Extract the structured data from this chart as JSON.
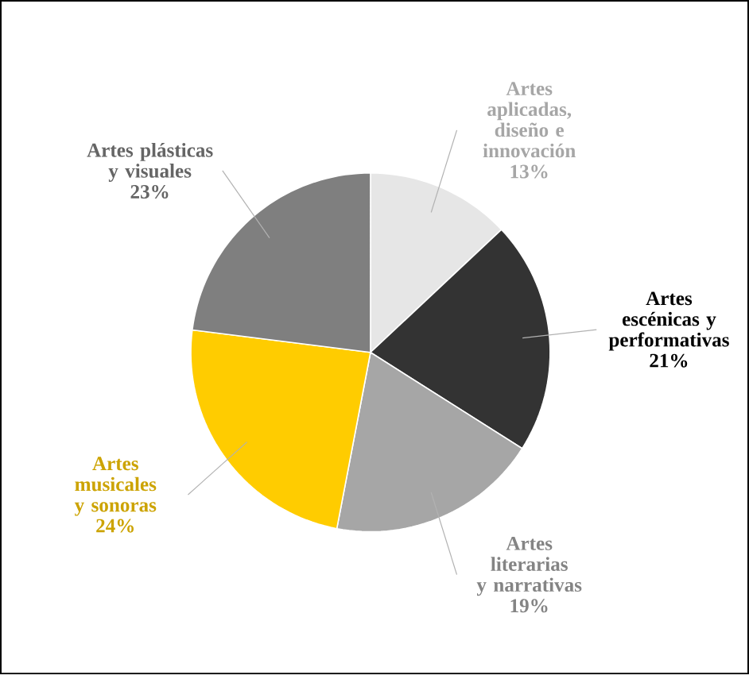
{
  "chart_data": {
    "type": "pie",
    "categories": [
      "Artes aplicadas, diseño e innovación",
      "Artes escénicas y performativas",
      "Artes literarias y narrativas",
      "Artes musicales y sonoras",
      "Artes plásticas y visuales"
    ],
    "values": [
      13,
      21,
      19,
      24,
      23
    ],
    "value_labels": [
      "13%",
      "21%",
      "19%",
      "24%",
      "23%"
    ],
    "colors": [
      "#e6e6e6",
      "#333333",
      "#a6a6a6",
      "#ffcc00",
      "#7f7f7f"
    ]
  }
}
